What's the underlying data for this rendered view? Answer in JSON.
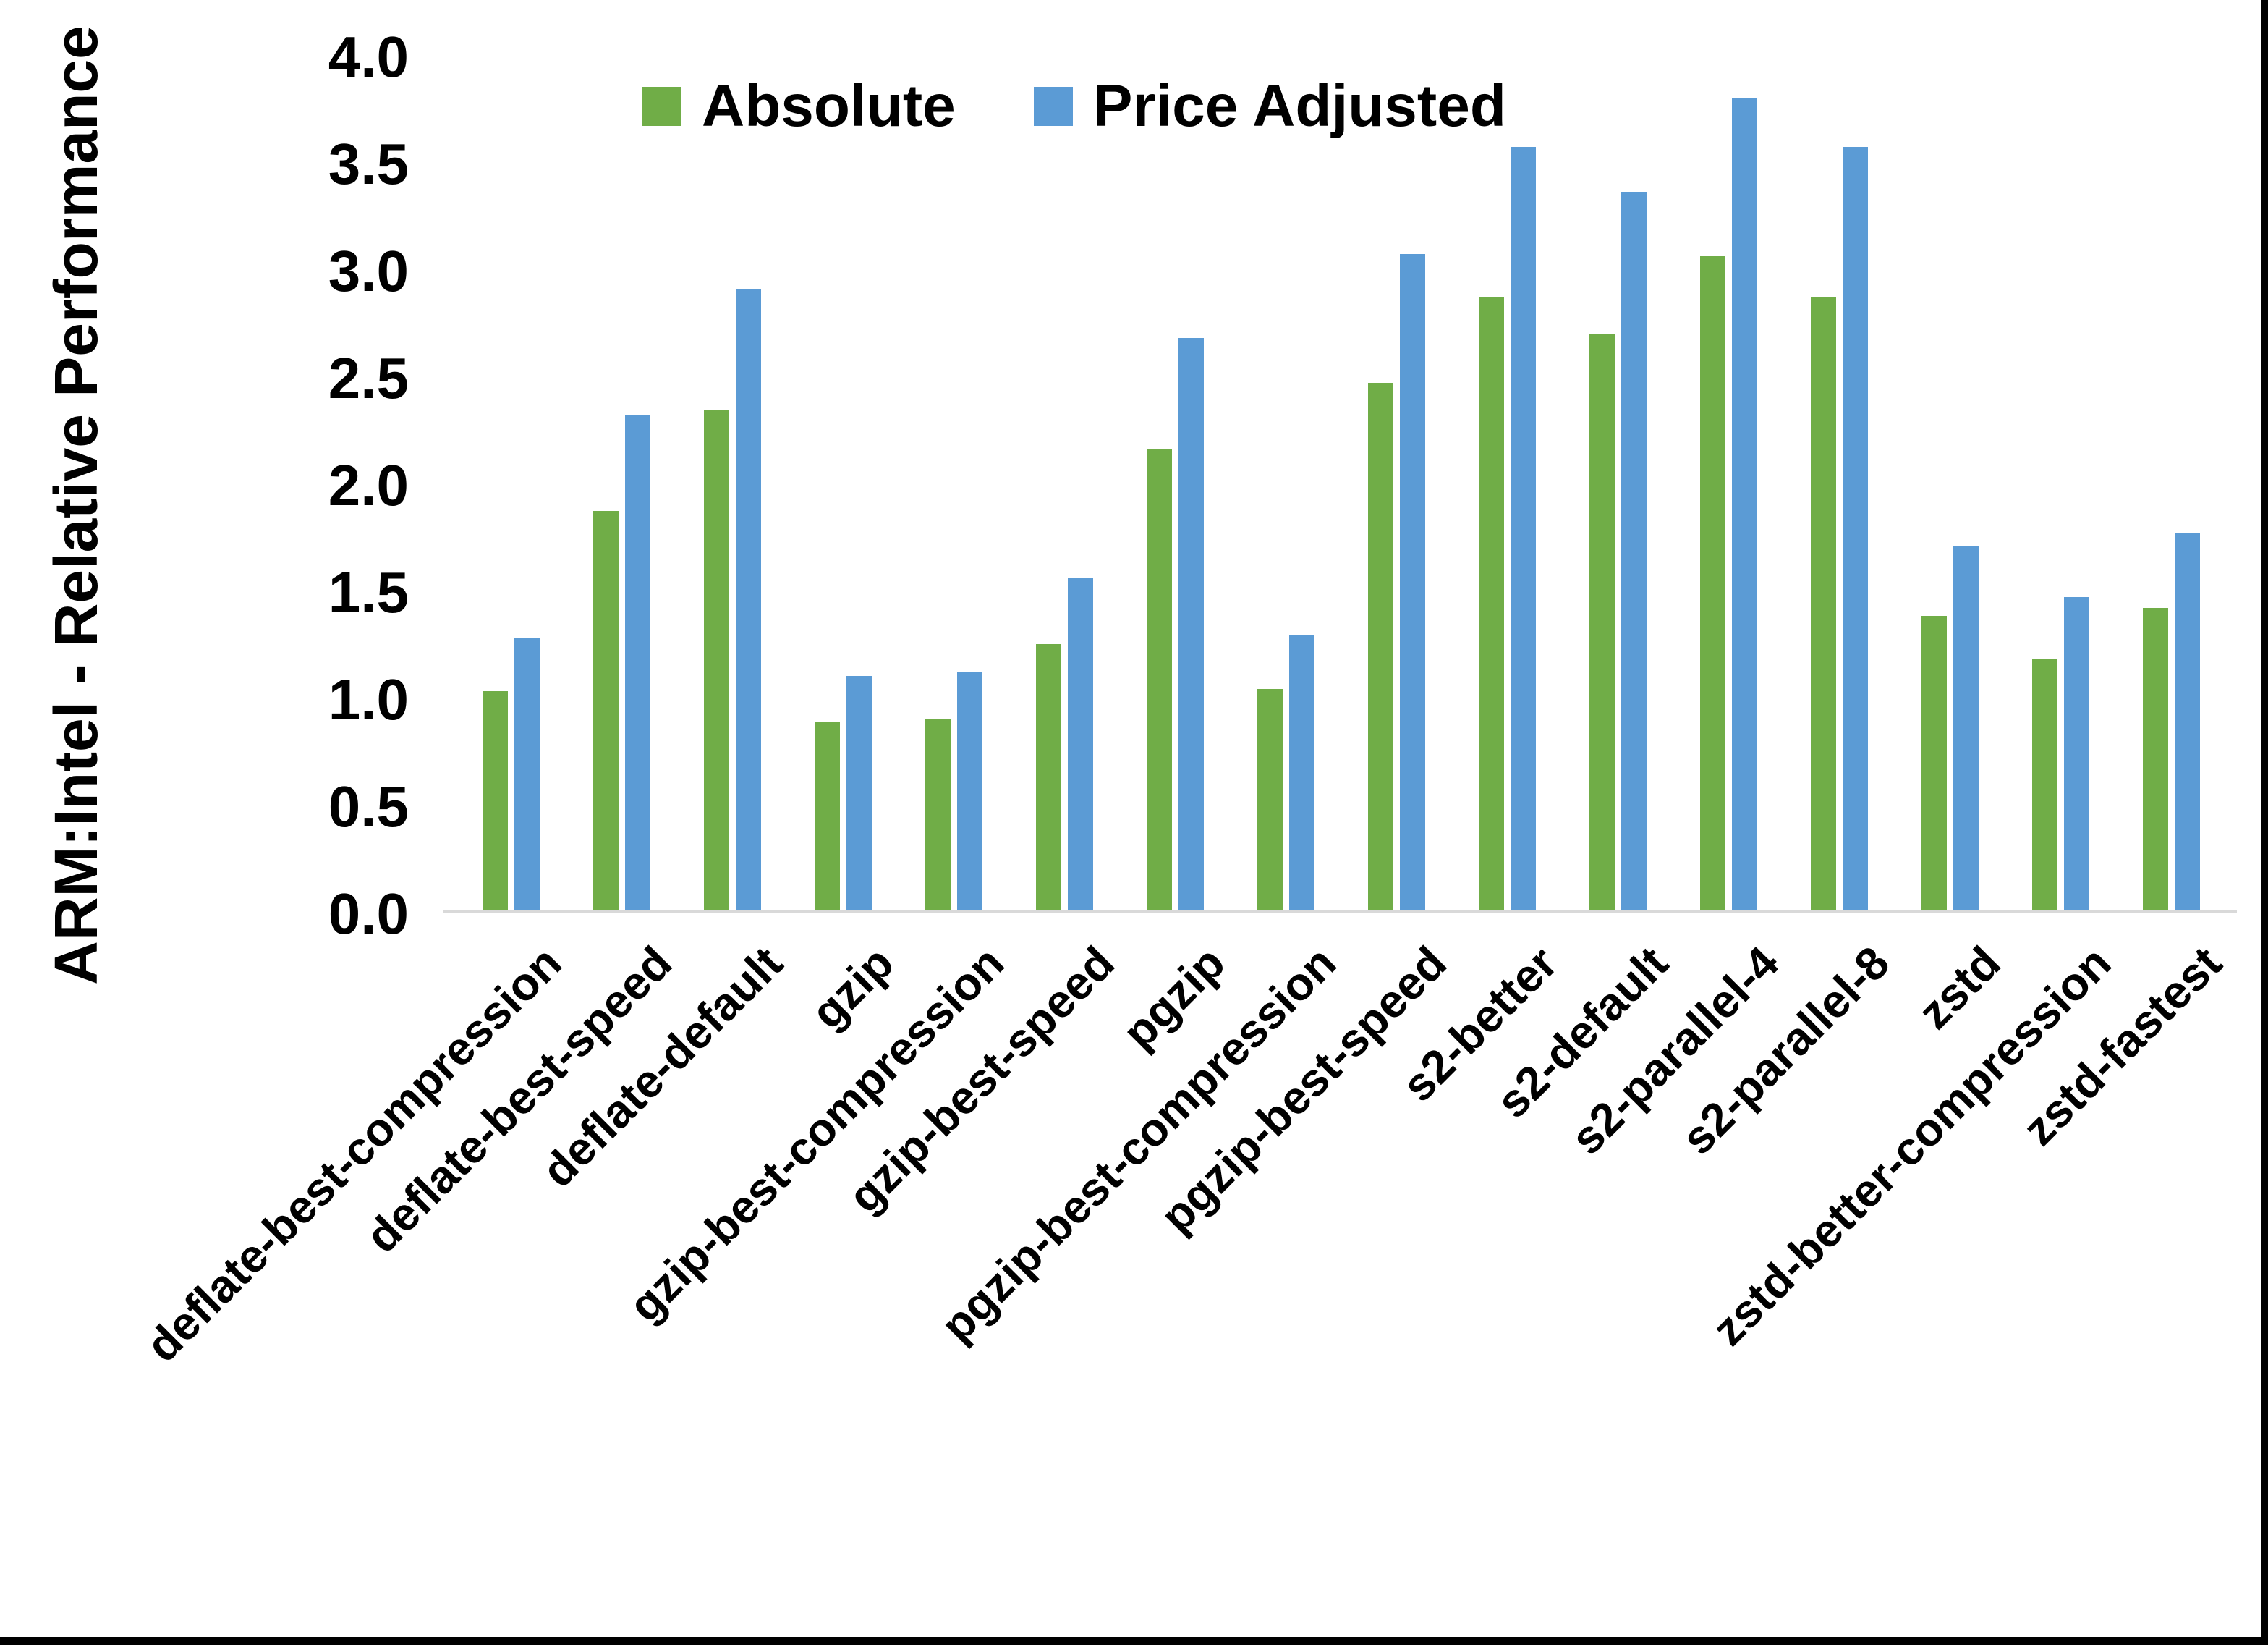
{
  "chart_data": {
    "type": "bar",
    "title": "",
    "ylabel": "ARM:Intel - Relative Performance",
    "xlabel": "",
    "ylim": [
      0.0,
      4.0
    ],
    "ytick_step": 0.5,
    "ytick_labels": [
      "0.0",
      "0.5",
      "1.0",
      "1.5",
      "2.0",
      "2.5",
      "3.0",
      "3.5",
      "4.0"
    ],
    "grid": false,
    "legend_position": "top-center",
    "axis_line_color": "#D9D9D9",
    "categories": [
      "deflate-best-compression",
      "deflate-best-speed",
      "deflate-default",
      "gzip",
      "gzip-best-compression",
      "gzip-best-speed",
      "pgzip",
      "pgzip-best-compression",
      "pgzip-best-speed",
      "s2-better",
      "s2-default",
      "s2-parallel-4",
      "s2-parallel-8",
      "zstd",
      "zstd-better-compression",
      "zstd-fastest"
    ],
    "series": [
      {
        "name": "Absolute",
        "color": "#70AD47",
        "values": [
          1.02,
          1.86,
          2.33,
          0.88,
          0.89,
          1.24,
          2.15,
          1.03,
          2.46,
          2.86,
          2.69,
          3.05,
          2.86,
          1.37,
          1.17,
          1.41
        ]
      },
      {
        "name": "Price Adjusted",
        "color": "#5B9BD5",
        "values": [
          1.27,
          2.31,
          2.9,
          1.09,
          1.11,
          1.55,
          2.67,
          1.28,
          3.06,
          3.56,
          3.35,
          3.79,
          3.56,
          1.7,
          1.46,
          1.76
        ]
      }
    ]
  }
}
